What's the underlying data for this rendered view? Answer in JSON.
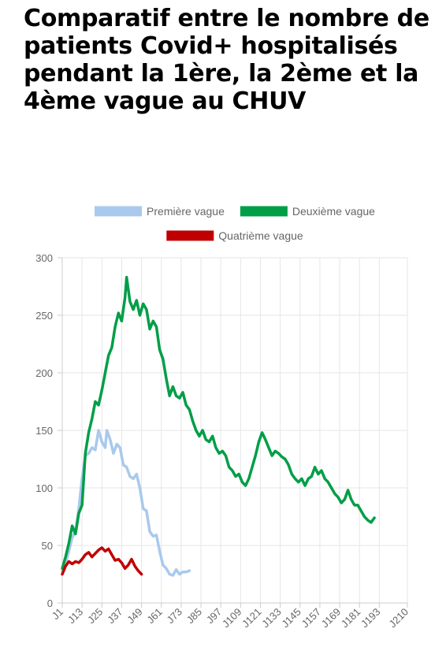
{
  "title": "Comparatif entre le nombre de patients Covid+ hospitalisés pendant la 1ère, la 2ème et la 4ème vague au CHUV",
  "chart_data": {
    "type": "line",
    "title": "Comparatif entre le nombre de patients Covid+ hospitalisés pendant la 1ère, la 2ème et la 4ème vague au CHUV",
    "xlabel": "",
    "ylabel": "",
    "ylim": [
      0,
      300
    ],
    "yticks": [
      "0",
      "50",
      "100",
      "150",
      "200",
      "250",
      "300"
    ],
    "xlim": [
      1,
      210
    ],
    "xticks": [
      "J1",
      "J13",
      "J25",
      "J37",
      "J49",
      "J61",
      "J73",
      "J85",
      "J97",
      "J109",
      "J121",
      "J133",
      "J145",
      "J157",
      "J169",
      "J181",
      "J193",
      "J210"
    ],
    "xtick_days": [
      1,
      13,
      25,
      37,
      49,
      61,
      73,
      85,
      97,
      109,
      121,
      133,
      145,
      157,
      169,
      181,
      193,
      210
    ],
    "grid": true,
    "legend_position": "top",
    "series": [
      {
        "name": "Première vague",
        "color": "#a9c9ec",
        "points": [
          [
            1,
            28
          ],
          [
            3,
            35
          ],
          [
            5,
            45
          ],
          [
            7,
            57
          ],
          [
            9,
            62
          ],
          [
            11,
            82
          ],
          [
            13,
            108
          ],
          [
            15,
            128
          ],
          [
            17,
            130
          ],
          [
            19,
            135
          ],
          [
            21,
            133
          ],
          [
            23,
            150
          ],
          [
            25,
            140
          ],
          [
            27,
            135
          ],
          [
            28,
            150
          ],
          [
            30,
            142
          ],
          [
            32,
            130
          ],
          [
            34,
            138
          ],
          [
            36,
            135
          ],
          [
            38,
            120
          ],
          [
            40,
            118
          ],
          [
            42,
            110
          ],
          [
            44,
            108
          ],
          [
            46,
            112
          ],
          [
            48,
            100
          ],
          [
            50,
            82
          ],
          [
            52,
            80
          ],
          [
            54,
            62
          ],
          [
            56,
            58
          ],
          [
            58,
            59
          ],
          [
            60,
            45
          ],
          [
            62,
            33
          ],
          [
            64,
            30
          ],
          [
            66,
            25
          ],
          [
            68,
            24
          ],
          [
            70,
            29
          ],
          [
            72,
            25
          ],
          [
            74,
            27
          ],
          [
            76,
            27
          ],
          [
            78,
            28
          ]
        ]
      },
      {
        "name": "Deuxième vague",
        "color": "#009e47",
        "points": [
          [
            1,
            30
          ],
          [
            3,
            40
          ],
          [
            5,
            52
          ],
          [
            7,
            67
          ],
          [
            9,
            60
          ],
          [
            11,
            78
          ],
          [
            13,
            85
          ],
          [
            15,
            130
          ],
          [
            17,
            148
          ],
          [
            19,
            160
          ],
          [
            21,
            175
          ],
          [
            23,
            172
          ],
          [
            25,
            185
          ],
          [
            27,
            200
          ],
          [
            29,
            215
          ],
          [
            31,
            222
          ],
          [
            33,
            240
          ],
          [
            35,
            252
          ],
          [
            37,
            245
          ],
          [
            39,
            265
          ],
          [
            40,
            283
          ],
          [
            42,
            262
          ],
          [
            44,
            255
          ],
          [
            46,
            263
          ],
          [
            48,
            250
          ],
          [
            50,
            260
          ],
          [
            52,
            255
          ],
          [
            54,
            238
          ],
          [
            56,
            245
          ],
          [
            58,
            240
          ],
          [
            60,
            220
          ],
          [
            62,
            212
          ],
          [
            64,
            195
          ],
          [
            66,
            180
          ],
          [
            68,
            188
          ],
          [
            70,
            180
          ],
          [
            72,
            178
          ],
          [
            74,
            183
          ],
          [
            76,
            172
          ],
          [
            78,
            168
          ],
          [
            80,
            158
          ],
          [
            82,
            150
          ],
          [
            84,
            145
          ],
          [
            86,
            150
          ],
          [
            88,
            142
          ],
          [
            90,
            140
          ],
          [
            92,
            145
          ],
          [
            94,
            135
          ],
          [
            96,
            130
          ],
          [
            98,
            132
          ],
          [
            100,
            128
          ],
          [
            102,
            118
          ],
          [
            104,
            115
          ],
          [
            106,
            110
          ],
          [
            108,
            112
          ],
          [
            110,
            105
          ],
          [
            112,
            102
          ],
          [
            114,
            108
          ],
          [
            116,
            118
          ],
          [
            118,
            128
          ],
          [
            120,
            140
          ],
          [
            122,
            148
          ],
          [
            124,
            142
          ],
          [
            126,
            135
          ],
          [
            128,
            128
          ],
          [
            130,
            132
          ],
          [
            132,
            130
          ],
          [
            134,
            127
          ],
          [
            136,
            125
          ],
          [
            138,
            120
          ],
          [
            140,
            112
          ],
          [
            142,
            108
          ],
          [
            144,
            105
          ],
          [
            146,
            108
          ],
          [
            148,
            102
          ],
          [
            150,
            108
          ],
          [
            152,
            110
          ],
          [
            154,
            118
          ],
          [
            156,
            112
          ],
          [
            158,
            115
          ],
          [
            160,
            108
          ],
          [
            162,
            105
          ],
          [
            164,
            100
          ],
          [
            166,
            95
          ],
          [
            168,
            92
          ],
          [
            170,
            87
          ],
          [
            172,
            90
          ],
          [
            174,
            98
          ],
          [
            176,
            90
          ],
          [
            178,
            85
          ],
          [
            180,
            85
          ],
          [
            182,
            80
          ],
          [
            184,
            75
          ],
          [
            186,
            72
          ],
          [
            188,
            70
          ],
          [
            190,
            74
          ]
        ]
      },
      {
        "name": "Quatrième vague",
        "color": "#c00000",
        "points": [
          [
            1,
            25
          ],
          [
            3,
            32
          ],
          [
            5,
            36
          ],
          [
            7,
            34
          ],
          [
            9,
            36
          ],
          [
            11,
            35
          ],
          [
            13,
            38
          ],
          [
            15,
            42
          ],
          [
            17,
            44
          ],
          [
            19,
            40
          ],
          [
            21,
            43
          ],
          [
            23,
            46
          ],
          [
            25,
            48
          ],
          [
            27,
            45
          ],
          [
            29,
            47
          ],
          [
            31,
            42
          ],
          [
            33,
            37
          ],
          [
            35,
            38
          ],
          [
            37,
            35
          ],
          [
            39,
            30
          ],
          [
            41,
            33
          ],
          [
            43,
            38
          ],
          [
            45,
            32
          ],
          [
            47,
            28
          ],
          [
            49,
            25
          ]
        ]
      }
    ]
  }
}
